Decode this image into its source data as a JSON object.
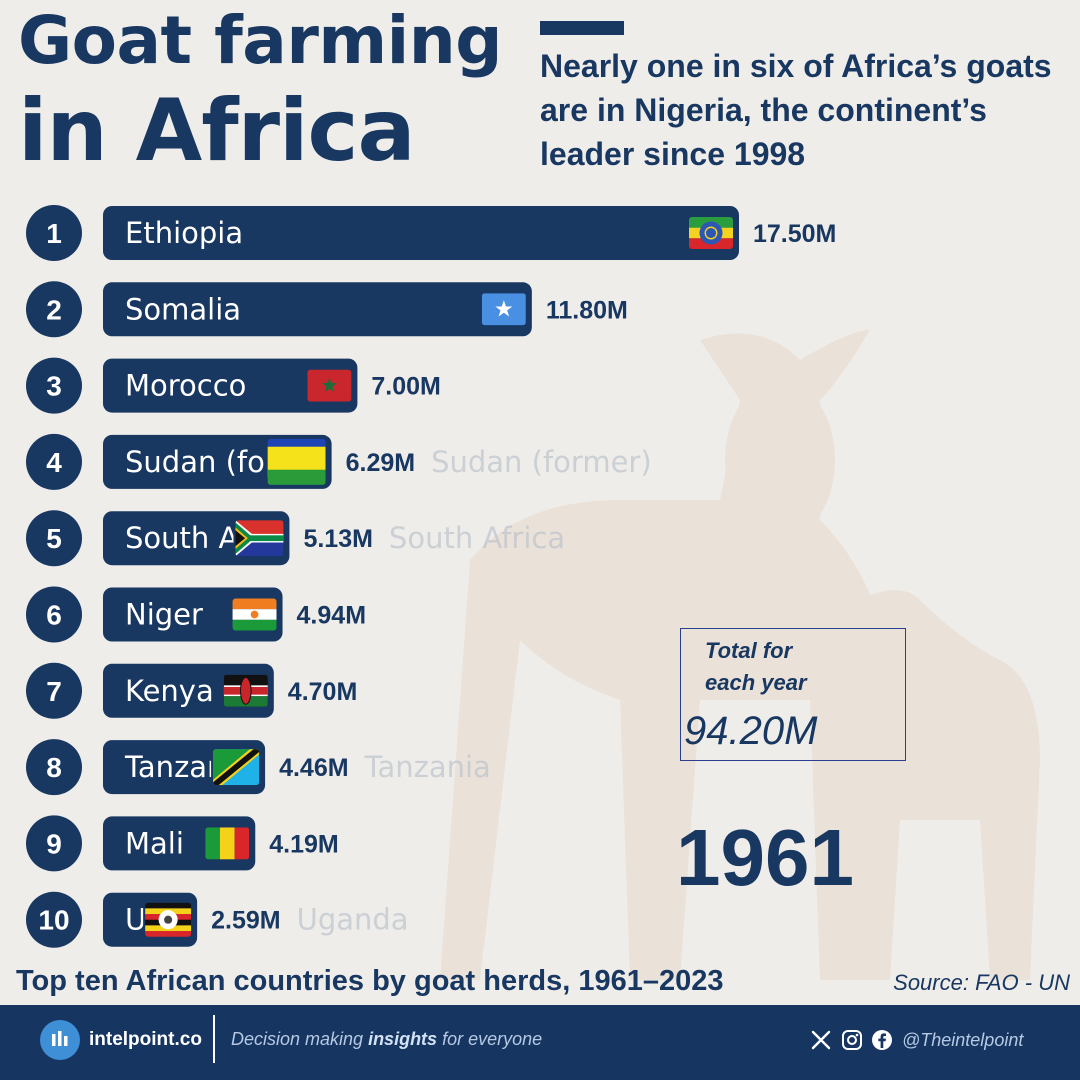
{
  "header": {
    "title_line1": "Goat farming",
    "title_line2": "in Africa",
    "subtitle": "Nearly one in six of Africa’s goats are in Nigeria, the continent’s leader since 1998"
  },
  "chart_data": {
    "type": "bar",
    "orientation": "horizontal",
    "categories": [
      "Ethiopia",
      "Somalia",
      "Morocco",
      "Sudan (former)",
      "South Africa",
      "Niger",
      "Kenya",
      "Tanzania",
      "Mali",
      "Uganda"
    ],
    "ranks": [
      "1",
      "2",
      "3",
      "4",
      "5",
      "6",
      "7",
      "8",
      "9",
      "10"
    ],
    "values": [
      17.5,
      11.8,
      7.0,
      6.29,
      5.13,
      4.94,
      4.7,
      4.46,
      4.19,
      2.59
    ],
    "value_labels": [
      "17.50M",
      "11.80M",
      "7.00M",
      "6.29M",
      "5.13M",
      "4.94M",
      "4.70M",
      "4.46M",
      "4.19M",
      "2.59M"
    ],
    "flags": [
      "ethiopia-flag-icon",
      "somalia-flag-icon",
      "morocco-flag-icon",
      "sudan-former-flag-icon",
      "south-africa-flag-icon",
      "niger-flag-icon",
      "kenya-flag-icon",
      "tanzania-flag-icon",
      "mali-flag-icon",
      "uganda-flag-icon"
    ],
    "xlim": [
      0,
      17.5
    ],
    "bar_color": "#183761",
    "rank_circle_color": "#183761"
  },
  "total": {
    "label_line1": "Total for",
    "label_line2": "each year",
    "value": "94.20M"
  },
  "year": "1961",
  "caption": "Top ten African countries by goat herds, 1961–2023",
  "source": "Source: FAO - UN",
  "footer": {
    "logo_text": "intelpoint.co",
    "tagline_pre": "Decision making ",
    "tagline_bold": "insights",
    "tagline_post": " for everyone",
    "handle": "@Theintelpoint",
    "icons": [
      "x-icon",
      "instagram-icon",
      "facebook-icon"
    ]
  },
  "colors": {
    "navy": "#183761",
    "background": "#efedea",
    "footer": "#163561",
    "accent_blue": "#3e8fd6"
  }
}
